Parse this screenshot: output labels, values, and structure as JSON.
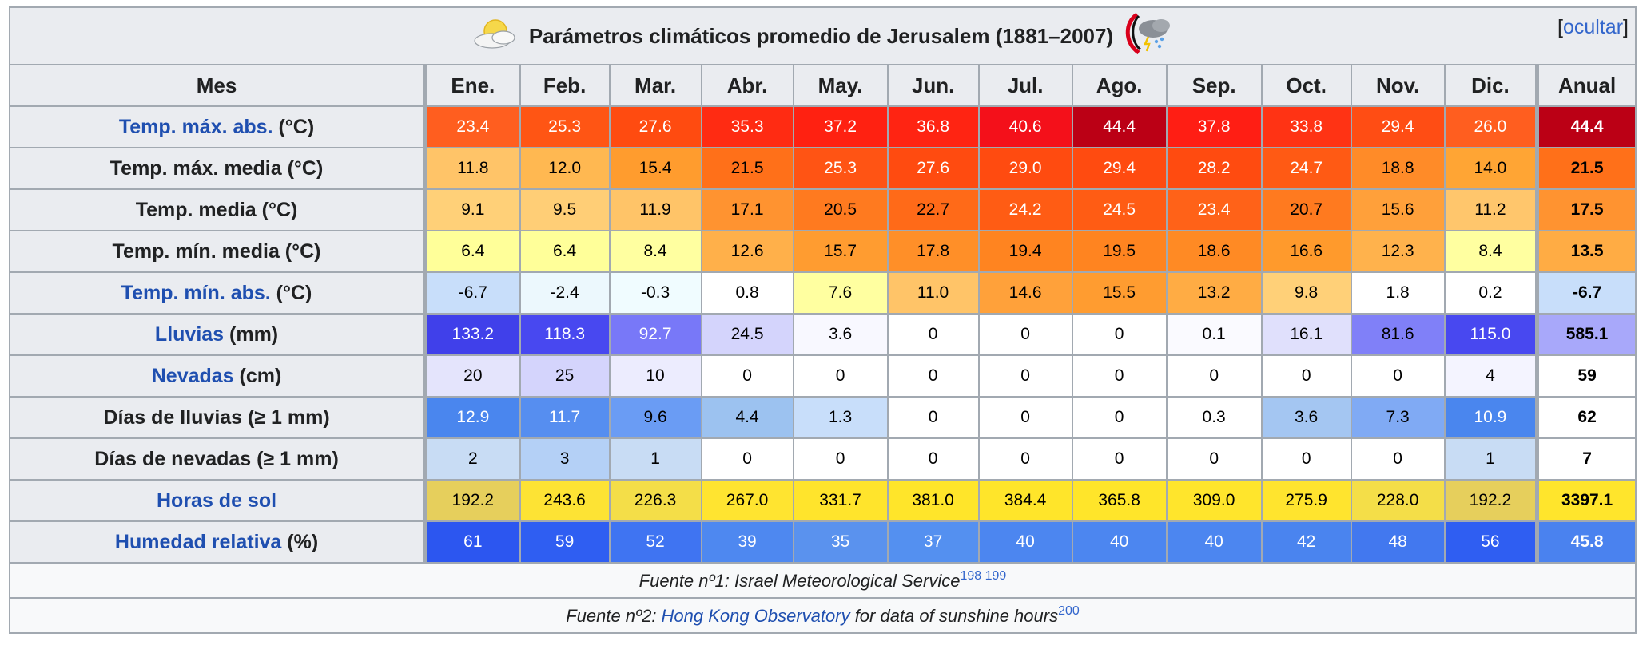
{
  "title": "Parámetros climáticos promedio de Jerusalem (1881–2007)",
  "toggle": {
    "open": "[",
    "label": "ocultar",
    "close": "]"
  },
  "header": {
    "first": "Mes",
    "months": [
      "Ene.",
      "Feb.",
      "Mar.",
      "Abr.",
      "May.",
      "Jun.",
      "Jul.",
      "Ago.",
      "Sep.",
      "Oct.",
      "Nov.",
      "Dic."
    ],
    "annual": "Anual"
  },
  "rows": [
    {
      "link": "Temp. máx. abs.",
      "rest": " (°C)",
      "values": [
        "23.4",
        "25.3",
        "27.6",
        "35.3",
        "37.2",
        "36.8",
        "40.6",
        "44.4",
        "37.8",
        "33.8",
        "29.4",
        "26.0"
      ],
      "annual": "44.4",
      "colors": [
        "#ff5e1f",
        "#ff5514",
        "#ff4b10",
        "#ff2b12",
        "#ff2111",
        "#ff2412",
        "#f4101a",
        "#bb0015",
        "#ff1e14",
        "#ff3314",
        "#ff4d14",
        "#ff5e1f"
      ],
      "annual_color": "#bb0015"
    },
    {
      "link": "",
      "rest": "Temp. máx. media (°C)",
      "values": [
        "11.8",
        "12.0",
        "15.4",
        "21.5",
        "25.3",
        "27.6",
        "29.0",
        "29.4",
        "28.2",
        "24.7",
        "18.8",
        "14.0"
      ],
      "annual": "21.5",
      "colors": [
        "#ffc468",
        "#ffb851",
        "#ff9c2e",
        "#ff7019",
        "#ff5414",
        "#ff4b10",
        "#ff4b10",
        "#ff4b10",
        "#ff4b10",
        "#ff5a14",
        "#ff8b28",
        "#ffa534"
      ],
      "annual_color": "#ff7019"
    },
    {
      "link": "",
      "rest": "Temp. media (°C)",
      "values": [
        "9.1",
        "9.5",
        "11.9",
        "17.1",
        "20.5",
        "22.7",
        "24.2",
        "24.5",
        "23.4",
        "20.7",
        "15.6",
        "11.2"
      ],
      "annual": "17.5",
      "colors": [
        "#ffd078",
        "#ffce76",
        "#ffc468",
        "#ff9330",
        "#ff7a1f",
        "#ff6a18",
        "#ff5c14",
        "#ff5c14",
        "#ff6218",
        "#ff7a1f",
        "#ffa03a",
        "#ffc66c"
      ],
      "annual_color": "#ff9330"
    },
    {
      "link": "",
      "rest": "Temp. mín. media (°C)",
      "values": [
        "6.4",
        "6.4",
        "8.4",
        "12.6",
        "15.7",
        "17.8",
        "19.4",
        "19.5",
        "18.6",
        "16.6",
        "12.3",
        "8.4"
      ],
      "annual": "13.5",
      "colors": [
        "#ffff99",
        "#ffff99",
        "#ffffa0",
        "#ffb04a",
        "#ff9c30",
        "#ff8f28",
        "#ff8420",
        "#ff8420",
        "#ff8a24",
        "#ff9a2c",
        "#ffb24c",
        "#ffffa0"
      ],
      "annual_color": "#ffac44"
    },
    {
      "link": "Temp. mín. abs.",
      "rest": " (°C)",
      "values": [
        "-6.7",
        "-2.4",
        "-0.3",
        "0.8",
        "7.6",
        "11.0",
        "14.6",
        "15.5",
        "13.2",
        "9.8",
        "1.8",
        "0.2"
      ],
      "annual": "-6.7",
      "colors": [
        "#c8defa",
        "#ecf8fd",
        "#f0fcff",
        "#ffffff",
        "#ffffa0",
        "#ffc468",
        "#ffa13a",
        "#ff9c30",
        "#ffac44",
        "#ffd078",
        "#ffffff",
        "#ffffff"
      ],
      "annual_color": "#c8defa"
    },
    {
      "link": "Lluvias",
      "rest": " (mm)",
      "values": [
        "133.2",
        "118.3",
        "92.7",
        "24.5",
        "3.6",
        "0",
        "0",
        "0",
        "0.1",
        "16.1",
        "81.6",
        "115.0"
      ],
      "annual": "585.1",
      "colors": [
        "#4040ea",
        "#4848f0",
        "#7878f8",
        "#d4d4fc",
        "#f8f8ff",
        "#ffffff",
        "#ffffff",
        "#ffffff",
        "#fafaff",
        "#e0e0fc",
        "#8080f8",
        "#4848f0"
      ],
      "annual_color": "#a8a8fa"
    },
    {
      "link": "Nevadas",
      "rest": " (cm)",
      "values": [
        "20",
        "25",
        "10",
        "0",
        "0",
        "0",
        "0",
        "0",
        "0",
        "0",
        "0",
        "4"
      ],
      "annual": "59",
      "colors": [
        "#e4e4fc",
        "#d4d4fc",
        "#ececfe",
        "#ffffff",
        "#ffffff",
        "#ffffff",
        "#ffffff",
        "#ffffff",
        "#ffffff",
        "#ffffff",
        "#ffffff",
        "#f4f4ff"
      ],
      "annual_color": "#ffffff"
    },
    {
      "link": "",
      "rest": "Días de lluvias (≥ 1 mm)",
      "values": [
        "12.9",
        "11.7",
        "9.6",
        "4.4",
        "1.3",
        "0",
        "0",
        "0",
        "0.3",
        "3.6",
        "7.3",
        "10.9"
      ],
      "annual": "62",
      "colors": [
        "#4a86ee",
        "#568ef0",
        "#6a9cf4",
        "#9cc2f0",
        "#c8defa",
        "#ffffff",
        "#ffffff",
        "#ffffff",
        "#ffffff",
        "#a4c6f2",
        "#80aaf4",
        "#4a86ee"
      ],
      "annual_color": "#ffffff"
    },
    {
      "link": "",
      "rest": "Días de nevadas (≥ 1 mm)",
      "values": [
        "2",
        "3",
        "1",
        "0",
        "0",
        "0",
        "0",
        "0",
        "0",
        "0",
        "0",
        "1"
      ],
      "annual": "7",
      "colors": [
        "#c8dcf4",
        "#b4d0f6",
        "#c8dcf4",
        "#ffffff",
        "#ffffff",
        "#ffffff",
        "#ffffff",
        "#ffffff",
        "#ffffff",
        "#ffffff",
        "#ffffff",
        "#c8dcf4"
      ],
      "annual_color": "#ffffff"
    },
    {
      "link": "Horas de sol",
      "rest": "",
      "values": [
        "192.2",
        "243.6",
        "226.3",
        "267.0",
        "331.7",
        "381.0",
        "384.4",
        "365.8",
        "309.0",
        "275.9",
        "228.0",
        "192.2"
      ],
      "annual": "3397.1",
      "colors": [
        "#e6cf5c",
        "#fde334",
        "#f4de48",
        "#ffe430",
        "#ffe42c",
        "#ffe52a",
        "#ffe52a",
        "#ffe52a",
        "#ffe52c",
        "#ffe42e",
        "#f4de48",
        "#e6cf5c"
      ],
      "annual_color": "#ffe52c"
    },
    {
      "link": "Humedad relativa",
      "rest": " (%)",
      "values": [
        "61",
        "59",
        "52",
        "39",
        "35",
        "37",
        "40",
        "40",
        "40",
        "42",
        "48",
        "56"
      ],
      "annual": "45.8",
      "colors": [
        "#2c56f0",
        "#2f5ef2",
        "#3f74f2",
        "#4e88f0",
        "#5a92ee",
        "#5490f0",
        "#4c86f0",
        "#4c86f0",
        "#4c86f0",
        "#4a84ef",
        "#4278ef",
        "#2f5ef2"
      ],
      "annual_color": "#4a82ef"
    }
  ],
  "sources": [
    {
      "prefix": "Fuente nº1: Israel Meteorological Service",
      "link": "",
      "suffix": "",
      "sup": "198 199"
    },
    {
      "prefix": "Fuente nº2: ",
      "link": "Hong Kong Observatory",
      "suffix": " for data of sunshine hours",
      "sup": "200"
    }
  ]
}
